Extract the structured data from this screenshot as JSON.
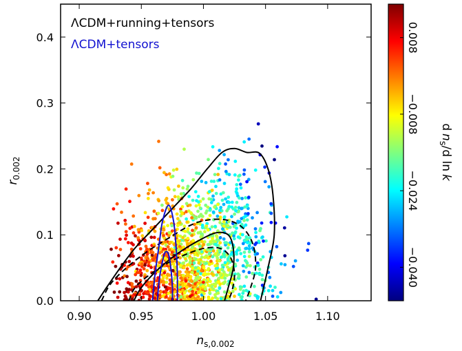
{
  "chart_data": {
    "type": "scatter",
    "x_axis": {
      "label_main": "n",
      "label_sub": "s,0.002",
      "range": [
        0.885,
        1.135
      ],
      "ticks": [
        0.9,
        0.95,
        1.0,
        1.05,
        1.1
      ],
      "tick_labels": [
        "0.90",
        "0.95",
        "1.00",
        "1.05",
        "1.10"
      ]
    },
    "y_axis": {
      "label_main": "r",
      "label_sub": "0.002",
      "range": [
        0.0,
        0.45
      ],
      "ticks": [
        0.0,
        0.1,
        0.2,
        0.3,
        0.4
      ],
      "tick_labels": [
        "0.0",
        "0.1",
        "0.2",
        "0.3",
        "0.4"
      ]
    },
    "colorbar": {
      "label": "d n_s / d ln k",
      "label_parts": [
        "d",
        "n",
        "s",
        "/d ln",
        "k"
      ],
      "range": [
        -0.047,
        0.015
      ],
      "ticks": [
        0.008,
        -0.008,
        -0.024,
        -0.04
      ],
      "tick_labels": [
        "0.008",
        "−0.008",
        "−0.024",
        "−0.040"
      ],
      "colormap": "jet"
    },
    "legend": {
      "placement": "top-left",
      "entries": [
        {
          "label": "ΛCDM+running+tensors",
          "color": "#000000"
        },
        {
          "label": "ΛCDM+tensors",
          "color": "#1010d0"
        }
      ]
    },
    "scatter_seed": 7,
    "scatter_count": 1500,
    "contours": [
      {
        "series": "ΛCDM+running+tensors",
        "level": "95%",
        "style": "solid",
        "color": "#000000",
        "points": [
          [
            0.915,
            0.0
          ],
          [
            0.922,
            0.02
          ],
          [
            0.933,
            0.05
          ],
          [
            0.945,
            0.08
          ],
          [
            0.96,
            0.11
          ],
          [
            0.975,
            0.14
          ],
          [
            0.99,
            0.17
          ],
          [
            1.003,
            0.2
          ],
          [
            1.015,
            0.225
          ],
          [
            1.025,
            0.231
          ],
          [
            1.035,
            0.225
          ],
          [
            1.045,
            0.224
          ],
          [
            1.052,
            0.2
          ],
          [
            1.056,
            0.16
          ],
          [
            1.057,
            0.1
          ],
          [
            1.052,
            0.05
          ],
          [
            1.046,
            0.0
          ]
        ]
      },
      {
        "series": "ΛCDM+running+tensors",
        "level": "68%",
        "style": "solid",
        "color": "#000000",
        "points": [
          [
            0.944,
            0.0
          ],
          [
            0.95,
            0.02
          ],
          [
            0.962,
            0.045
          ],
          [
            0.978,
            0.07
          ],
          [
            0.995,
            0.09
          ],
          [
            1.01,
            0.103
          ],
          [
            1.02,
            0.1
          ],
          [
            1.024,
            0.08
          ],
          [
            1.024,
            0.05
          ],
          [
            1.02,
            0.02
          ],
          [
            1.017,
            0.0
          ]
        ]
      },
      {
        "series": "ΛCDM+tensors",
        "level": "95%",
        "style": "dashed",
        "color": "#000000",
        "points": [
          [
            0.918,
            0.0
          ],
          [
            0.925,
            0.025
          ],
          [
            0.938,
            0.05
          ],
          [
            0.955,
            0.075
          ],
          [
            0.972,
            0.095
          ],
          [
            0.99,
            0.115
          ],
          [
            1.005,
            0.123
          ],
          [
            1.02,
            0.122
          ],
          [
            1.032,
            0.11
          ],
          [
            1.04,
            0.085
          ],
          [
            1.042,
            0.05
          ],
          [
            1.038,
            0.02
          ],
          [
            1.034,
            0.0
          ]
        ]
      },
      {
        "series": "ΛCDM+tensors",
        "level": "68%",
        "style": "dashed",
        "color": "#000000",
        "points": [
          [
            0.94,
            0.0
          ],
          [
            0.945,
            0.02
          ],
          [
            0.957,
            0.04
          ],
          [
            0.972,
            0.058
          ],
          [
            0.988,
            0.072
          ],
          [
            1.002,
            0.08
          ],
          [
            1.014,
            0.079
          ],
          [
            1.022,
            0.065
          ],
          [
            1.025,
            0.04
          ],
          [
            1.023,
            0.015
          ],
          [
            1.02,
            0.0
          ]
        ]
      },
      {
        "series": "ΛCDM+tensors",
        "level": "95%",
        "style": "solid",
        "color": "#1010d0",
        "points": [
          [
            0.959,
            0.0
          ],
          [
            0.961,
            0.04
          ],
          [
            0.964,
            0.08
          ],
          [
            0.967,
            0.12
          ],
          [
            0.972,
            0.145
          ],
          [
            0.976,
            0.12
          ],
          [
            0.978,
            0.08
          ],
          [
            0.979,
            0.04
          ],
          [
            0.979,
            0.0
          ]
        ]
      },
      {
        "series": "ΛCDM+tensors",
        "level": "68%",
        "style": "solid",
        "color": "#1010d0",
        "points": [
          [
            0.963,
            0.0
          ],
          [
            0.964,
            0.025
          ],
          [
            0.966,
            0.05
          ],
          [
            0.969,
            0.073
          ],
          [
            0.972,
            0.07
          ],
          [
            0.974,
            0.045
          ],
          [
            0.975,
            0.02
          ],
          [
            0.975,
            0.0
          ]
        ]
      }
    ]
  }
}
